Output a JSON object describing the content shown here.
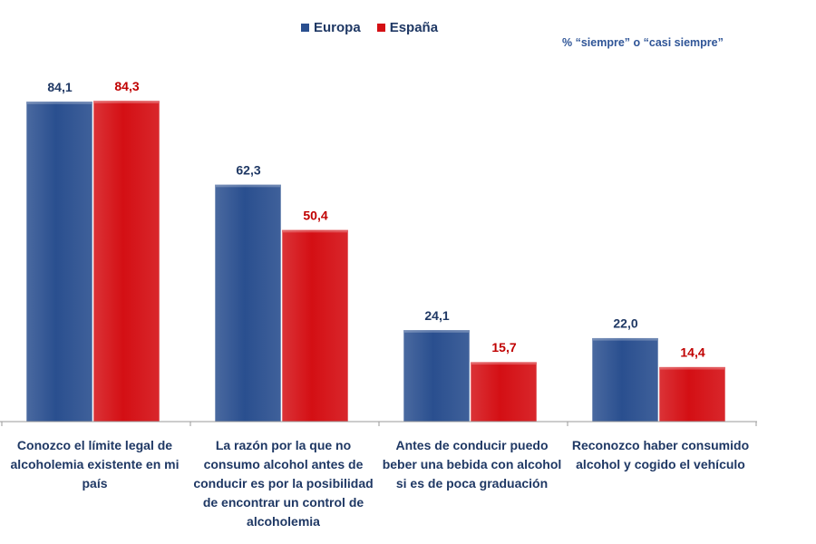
{
  "chart_data": {
    "type": "bar",
    "title": "",
    "note": "% “siempre” o “casi siempre”",
    "categories": [
      "Conozco el límite legal de alcoholemia existente en mi país",
      "La razón por la que no consumo alcohol antes de conducir es por la posibilidad de encontrar un control de alcoholemia",
      "Antes de conducir puedo beber una bebida con alcohol si es de poca graduación",
      "Reconozco haber consumido alcohol y cogido el vehículo"
    ],
    "series": [
      {
        "name": "Europa",
        "values": [
          84.1,
          62.3,
          24.1,
          22.0
        ],
        "labels": [
          "84,1",
          "62,3",
          "24,1",
          "22,0"
        ],
        "color": "#2a4f8f",
        "label_color": "#1f3864"
      },
      {
        "name": "España",
        "values": [
          84.3,
          50.4,
          15.7,
          14.4
        ],
        "labels": [
          "84,3",
          "50,4",
          "15,7",
          "14,4"
        ],
        "color": "#d40f14",
        "label_color": "#c00000"
      }
    ],
    "xlabel": "",
    "ylabel": "",
    "ylim": [
      0,
      100
    ],
    "grid": false,
    "legend": "top-center"
  }
}
